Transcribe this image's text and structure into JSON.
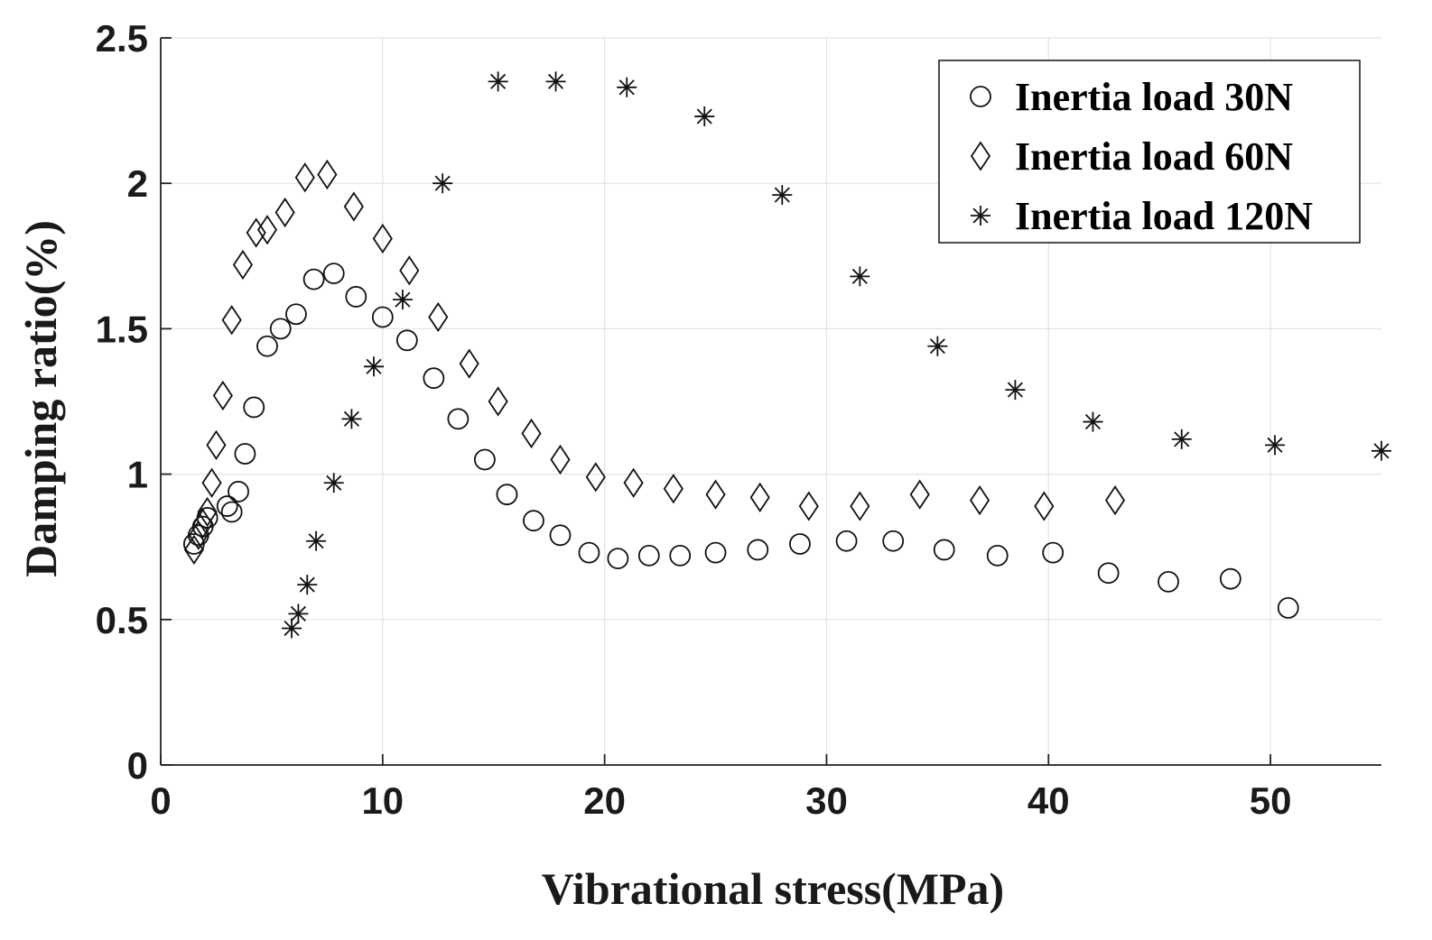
{
  "chart_data": {
    "type": "scatter",
    "title": "",
    "xlabel": "Vibrational stress(MPa)",
    "ylabel": "Damping ratio(%)",
    "xlim": [
      0,
      55
    ],
    "ylim": [
      0,
      2.5
    ],
    "grid": true,
    "legend_position": "top-right",
    "x_ticks": [
      {
        "value": 0,
        "label": "0"
      },
      {
        "value": 10,
        "label": "10"
      },
      {
        "value": 20,
        "label": "20"
      },
      {
        "value": 30,
        "label": "30"
      },
      {
        "value": 40,
        "label": "40"
      },
      {
        "value": 50,
        "label": "50"
      }
    ],
    "y_ticks": [
      {
        "value": 0,
        "label": "0"
      },
      {
        "value": 0.5,
        "label": "0.5"
      },
      {
        "value": 1,
        "label": "1"
      },
      {
        "value": 1.5,
        "label": "1.5"
      },
      {
        "value": 2,
        "label": "2"
      },
      {
        "value": 2.5,
        "label": "2.5"
      }
    ],
    "series": [
      {
        "name": "Inertia load 30N",
        "marker": "circle",
        "points": [
          [
            1.5,
            0.76
          ],
          [
            1.7,
            0.79
          ],
          [
            1.9,
            0.82
          ],
          [
            2.1,
            0.85
          ],
          [
            3.0,
            0.89
          ],
          [
            3.2,
            0.87
          ],
          [
            3.5,
            0.94
          ],
          [
            3.8,
            1.07
          ],
          [
            4.2,
            1.23
          ],
          [
            4.8,
            1.44
          ],
          [
            5.4,
            1.5
          ],
          [
            6.1,
            1.55
          ],
          [
            6.9,
            1.67
          ],
          [
            7.8,
            1.69
          ],
          [
            8.8,
            1.61
          ],
          [
            10.0,
            1.54
          ],
          [
            11.1,
            1.46
          ],
          [
            12.3,
            1.33
          ],
          [
            13.4,
            1.19
          ],
          [
            14.6,
            1.05
          ],
          [
            15.6,
            0.93
          ],
          [
            16.8,
            0.84
          ],
          [
            18.0,
            0.79
          ],
          [
            19.3,
            0.73
          ],
          [
            20.6,
            0.71
          ],
          [
            22.0,
            0.72
          ],
          [
            23.4,
            0.72
          ],
          [
            25.0,
            0.73
          ],
          [
            26.9,
            0.74
          ],
          [
            28.8,
            0.76
          ],
          [
            30.9,
            0.77
          ],
          [
            33.0,
            0.77
          ],
          [
            35.3,
            0.74
          ],
          [
            37.7,
            0.72
          ],
          [
            40.2,
            0.73
          ],
          [
            42.7,
            0.66
          ],
          [
            45.4,
            0.63
          ],
          [
            48.2,
            0.64
          ],
          [
            50.8,
            0.54
          ]
        ]
      },
      {
        "name": "Inertia load 60N",
        "marker": "diamond",
        "points": [
          [
            1.5,
            0.74
          ],
          [
            1.7,
            0.79
          ],
          [
            1.9,
            0.83
          ],
          [
            2.1,
            0.87
          ],
          [
            2.3,
            0.97
          ],
          [
            2.5,
            1.1
          ],
          [
            2.8,
            1.27
          ],
          [
            3.2,
            1.53
          ],
          [
            3.7,
            1.72
          ],
          [
            4.3,
            1.83
          ],
          [
            4.8,
            1.84
          ],
          [
            5.6,
            1.9
          ],
          [
            6.5,
            2.02
          ],
          [
            7.5,
            2.03
          ],
          [
            8.7,
            1.92
          ],
          [
            10.0,
            1.81
          ],
          [
            11.2,
            1.7
          ],
          [
            12.5,
            1.54
          ],
          [
            13.9,
            1.38
          ],
          [
            15.2,
            1.25
          ],
          [
            16.7,
            1.14
          ],
          [
            18.0,
            1.05
          ],
          [
            19.6,
            0.99
          ],
          [
            21.3,
            0.97
          ],
          [
            23.1,
            0.95
          ],
          [
            25.0,
            0.93
          ],
          [
            27.0,
            0.92
          ],
          [
            29.2,
            0.89
          ],
          [
            31.5,
            0.89
          ],
          [
            34.2,
            0.93
          ],
          [
            36.9,
            0.91
          ],
          [
            39.8,
            0.89
          ],
          [
            43.0,
            0.91
          ]
        ]
      },
      {
        "name": "Inertia load 120N",
        "marker": "asterisk",
        "points": [
          [
            5.9,
            0.47
          ],
          [
            6.2,
            0.52
          ],
          [
            6.6,
            0.62
          ],
          [
            7.0,
            0.77
          ],
          [
            7.8,
            0.97
          ],
          [
            8.6,
            1.19
          ],
          [
            9.6,
            1.37
          ],
          [
            10.9,
            1.6
          ],
          [
            12.7,
            2.0
          ],
          [
            15.2,
            2.35
          ],
          [
            17.8,
            2.35
          ],
          [
            21.0,
            2.33
          ],
          [
            24.5,
            2.23
          ],
          [
            28.0,
            1.96
          ],
          [
            31.5,
            1.68
          ],
          [
            35.0,
            1.44
          ],
          [
            38.5,
            1.29
          ],
          [
            42.0,
            1.18
          ],
          [
            46.0,
            1.12
          ],
          [
            50.2,
            1.1
          ],
          [
            55.0,
            1.08
          ]
        ]
      }
    ]
  }
}
